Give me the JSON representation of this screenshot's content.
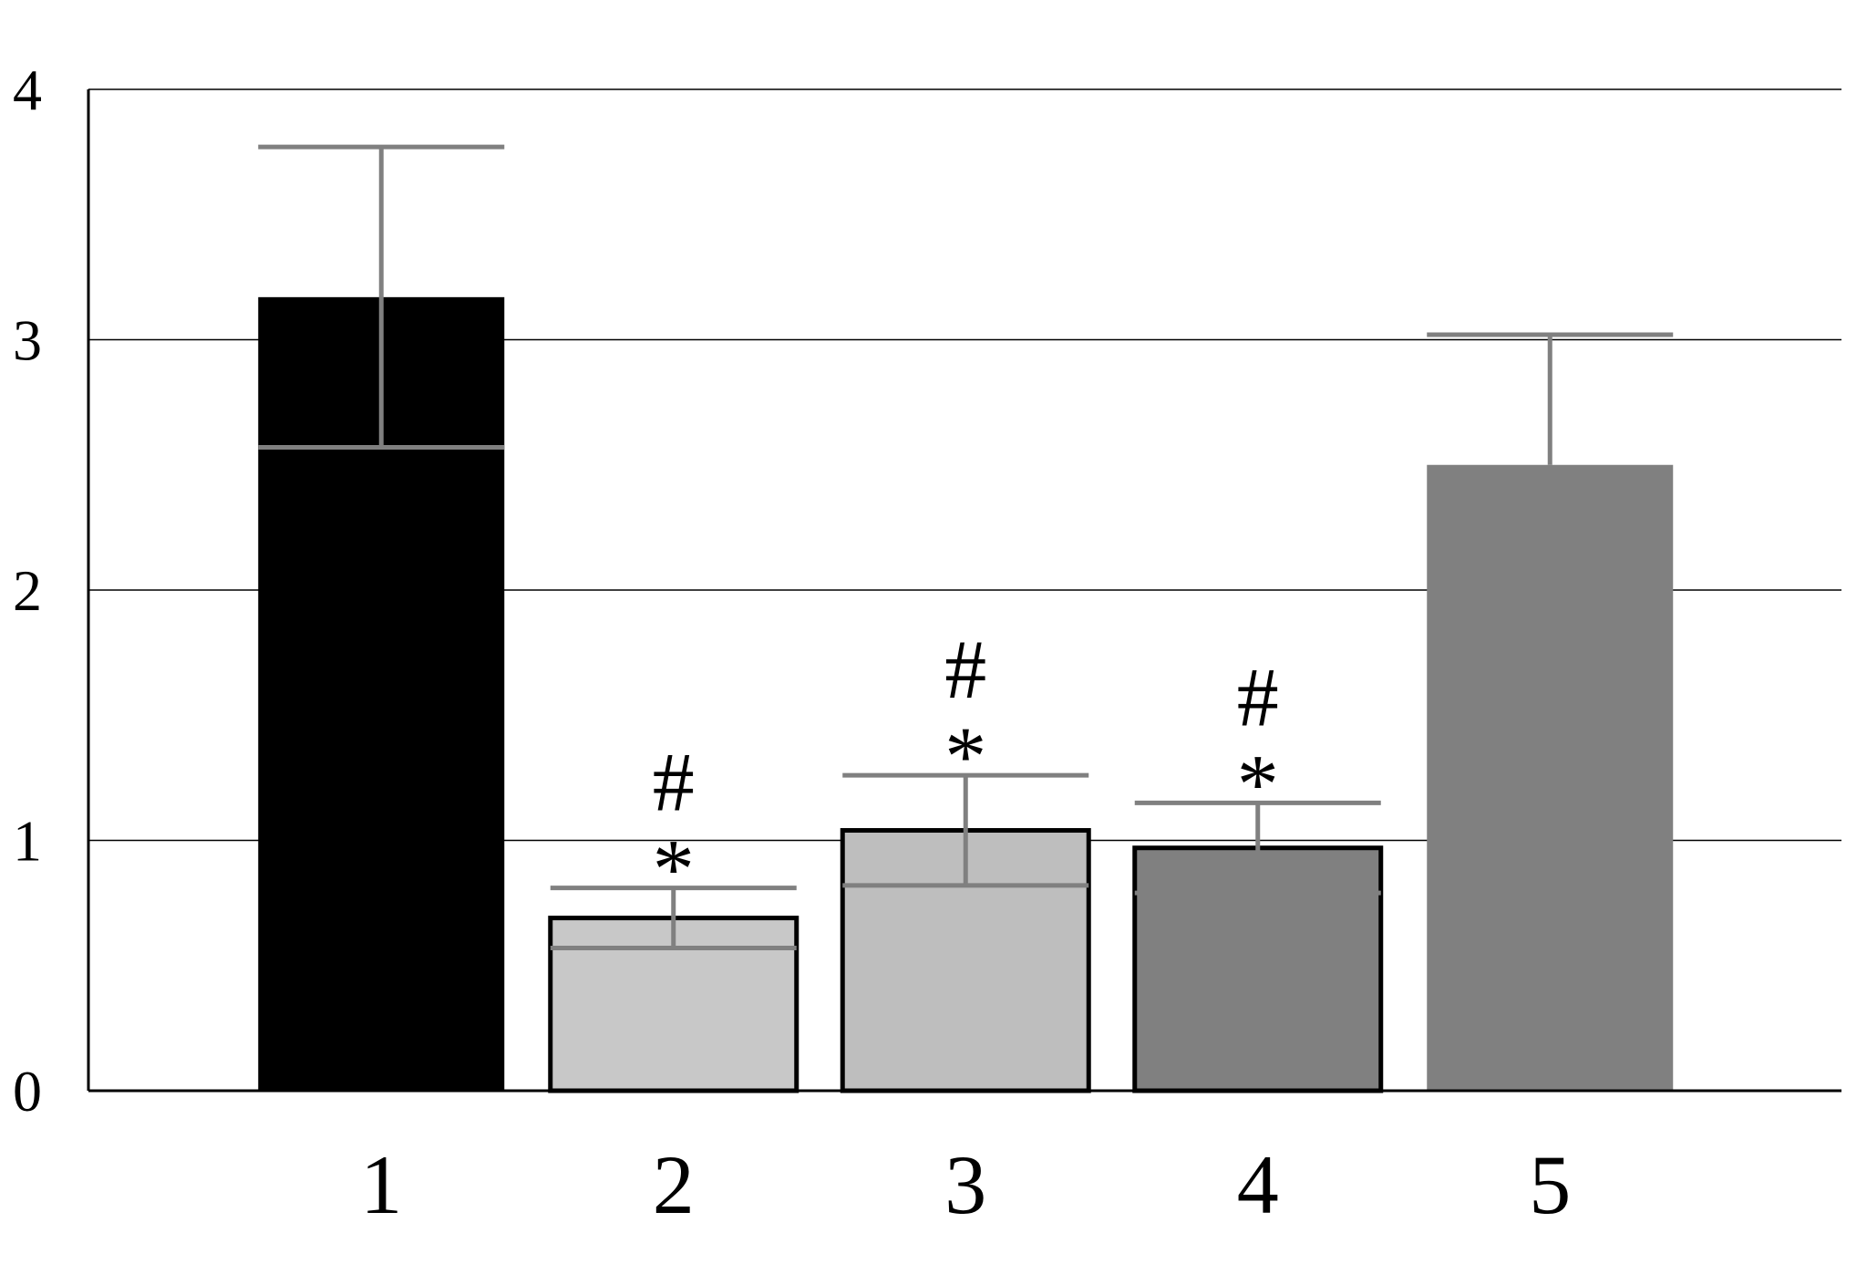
{
  "chart_data": {
    "type": "bar",
    "title": "",
    "xlabel": "",
    "ylabel": "",
    "ylim": [
      0,
      4
    ],
    "yticks": [
      "0",
      "1",
      "2",
      "3",
      "4"
    ],
    "grid": true,
    "categories": [
      "1",
      "2",
      "3",
      "4",
      "5"
    ],
    "values": [
      3.17,
      0.69,
      1.04,
      0.97,
      2.5
    ],
    "error_upper": [
      3.77,
      0.81,
      1.26,
      1.15,
      3.02
    ],
    "error_lower": [
      2.57,
      0.57,
      0.82,
      0.79,
      null
    ],
    "annotations": [
      {
        "category": "2",
        "hash": "#",
        "star": "*"
      },
      {
        "category": "3",
        "hash": "#",
        "star": "*"
      },
      {
        "category": "4",
        "hash": "#",
        "star": "*"
      }
    ],
    "bar_colors": [
      "#000000",
      "#c8c8c8",
      "#bebebe",
      "#808080",
      "#808080"
    ],
    "bar_outlined": [
      false,
      true,
      true,
      true,
      false
    ],
    "error_bar_color": "#808080"
  }
}
